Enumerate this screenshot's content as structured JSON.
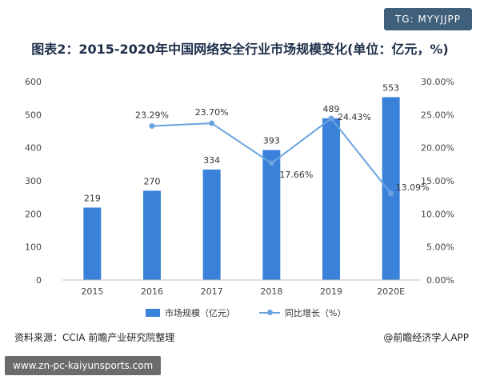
{
  "header": {
    "tag": "TG: MYYJJPP",
    "title": "图表2：2015-2020年中国网络安全行业市场规模变化(单位：亿元，%)"
  },
  "chart_data": {
    "type": "bar",
    "categories": [
      "2015",
      "2016",
      "2017",
      "2018",
      "2019",
      "2020E"
    ],
    "series": [
      {
        "name": "市场规模（亿元）",
        "type": "bar",
        "axis": "left",
        "values": [
          219,
          270,
          334,
          393,
          489,
          553
        ],
        "labels": [
          "219",
          "270",
          "334",
          "393",
          "489",
          "553"
        ]
      },
      {
        "name": "同比增长（%）",
        "type": "line",
        "axis": "right",
        "values": [
          null,
          23.29,
          23.7,
          17.66,
          24.43,
          13.09
        ],
        "labels": [
          "",
          "23.29%",
          "23.70%",
          "17.66%",
          "24.43%",
          "13.09%"
        ]
      }
    ],
    "y_left": {
      "min": 0,
      "max": 600,
      "ticks": [
        "0",
        "100",
        "200",
        "300",
        "400",
        "500",
        "600"
      ]
    },
    "y_right": {
      "min": 0,
      "max": 30,
      "ticks": [
        "0.00%",
        "5.00%",
        "10.00%",
        "15.00%",
        "20.00%",
        "25.00%",
        "30.00%"
      ]
    },
    "grid": false,
    "legend": "bottom",
    "colors": {
      "bar": "#3a82d9",
      "line": "#6aa3df"
    }
  },
  "footer": {
    "source": "资料来源：CCIA 前瞻产业研究院整理",
    "credit": "@前瞻经济学人APP",
    "url": "www.zn-pc-kaiyunsports.com"
  }
}
